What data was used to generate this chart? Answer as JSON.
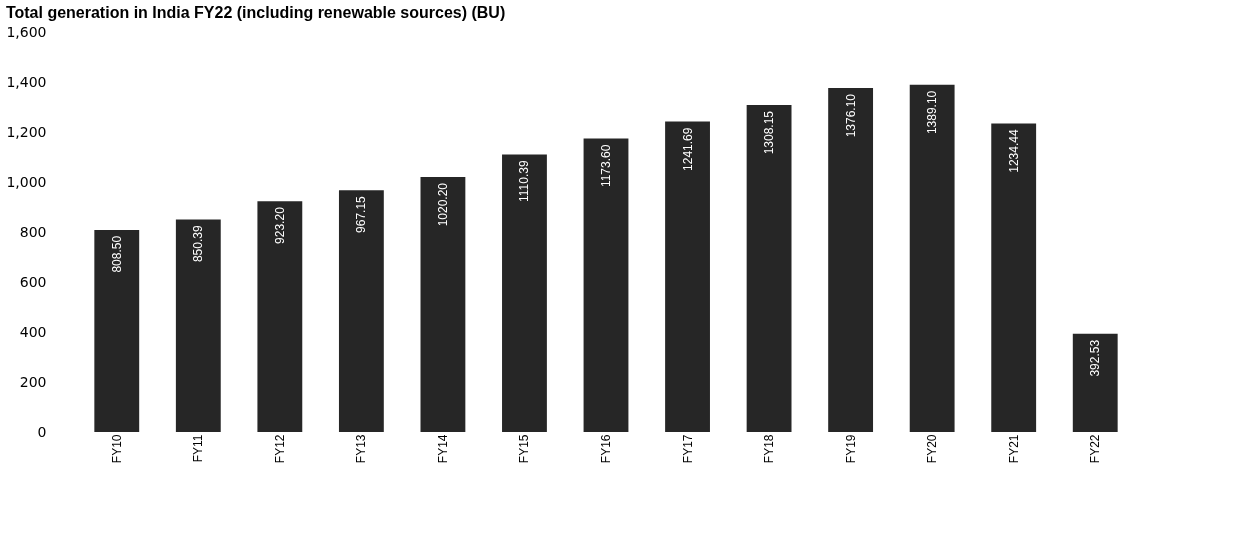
{
  "chart_data": {
    "type": "bar",
    "title": "Total generation in India FY22 (including renewable sources) (BU)",
    "categories": [
      "FY10",
      "FY11",
      "FY12",
      "FY13",
      "FY14",
      "FY15",
      "FY16",
      "FY17",
      "FY18",
      "FY19",
      "FY20",
      "FY21",
      "FY22"
    ],
    "values": [
      808.5,
      850.39,
      923.2,
      967.15,
      1020.2,
      1110.39,
      1173.6,
      1241.69,
      1308.15,
      1376.1,
      1389.1,
      1234.44,
      392.53
    ],
    "color": "#262626",
    "ylim": [
      0,
      1600
    ],
    "yticks": [
      {
        "value": 0,
        "label": "0"
      },
      {
        "value": 200,
        "label": "200"
      },
      {
        "value": 400,
        "label": "400"
      },
      {
        "value": 600,
        "label": "600"
      },
      {
        "value": 800,
        "label": "800"
      },
      {
        "value": 1000,
        "label": "1,000"
      },
      {
        "value": 1200,
        "label": "1,200"
      },
      {
        "value": 1400,
        "label": "1,400"
      },
      {
        "value": 1600,
        "label": "1,600"
      }
    ],
    "value_labels": [
      "808.50",
      "850.39",
      "923.20",
      "967.15",
      "1020.20",
      "1110.39",
      "1173.60",
      "1241.69",
      "1308.15",
      "1376.10",
      "1389.10",
      "1234.44",
      "392.53"
    ],
    "grid": false
  }
}
